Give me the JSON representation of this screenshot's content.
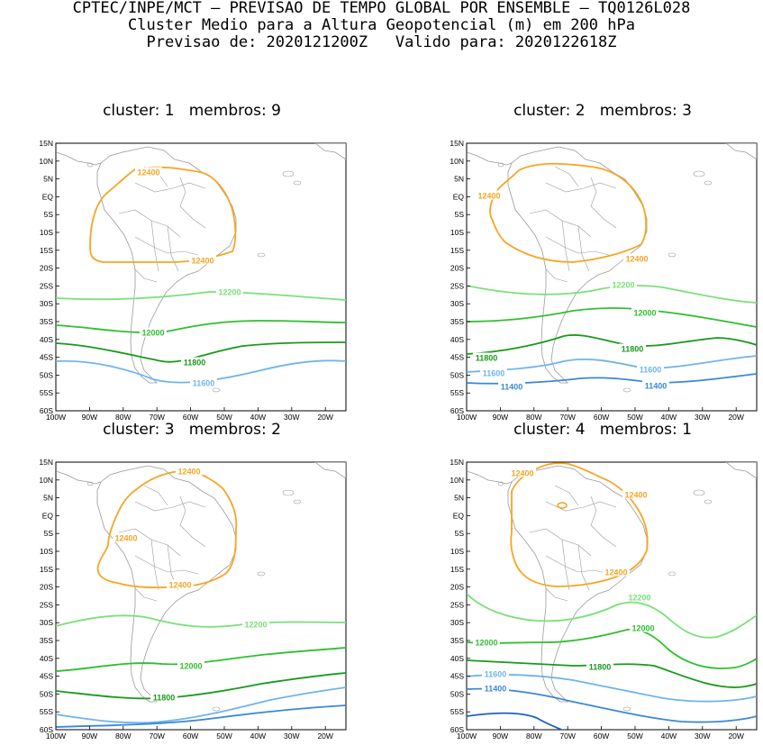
{
  "header": {
    "line1": "CPTEC/INPE/MCT — PREVISAO DE TEMPO GLOBAL POR ENSEMBLE — TQ0126L028",
    "line2": "Cluster Medio para a Altura Geopotencial (m) em 200 hPa",
    "line3": "Previsao de: 2020121200Z   Valido para: 2020122618Z"
  },
  "colors": {
    "c12400": "#f5a623",
    "c12200": "#7ae07a",
    "c12000": "#2fbf2f",
    "c11800": "#1a9a1a",
    "c11600": "#6fb4ec",
    "c11400": "#3a88d8",
    "c11200": "#1f5fbf",
    "coast": "#9a9a9a"
  },
  "axes": {
    "lat_labels": [
      "15N",
      "10N",
      "5N",
      "EQ",
      "5S",
      "10S",
      "15S",
      "20S",
      "25S",
      "30S",
      "35S",
      "40S",
      "45S",
      "50S",
      "55S",
      "60S"
    ],
    "lon_labels": [
      "100W",
      "90W",
      "80W",
      "70W",
      "60W",
      "50W",
      "40W",
      "30W",
      "20W"
    ]
  },
  "panels": [
    {
      "title": "cluster: 1   membros: 9",
      "contours": [
        {
          "level": "12400",
          "color": "c12400",
          "labels": [
            "12400",
            "12400"
          ]
        },
        {
          "level": "12200",
          "color": "c12200",
          "labels": [
            "12200"
          ]
        },
        {
          "level": "12000",
          "color": "c12000",
          "labels": [
            "12000"
          ]
        },
        {
          "level": "11800",
          "color": "c11800",
          "labels": [
            "11800"
          ]
        },
        {
          "level": "11600",
          "color": "c11600",
          "labels": [
            "11600"
          ]
        }
      ]
    },
    {
      "title": "cluster: 2   membros: 3",
      "contours": [
        {
          "level": "12400",
          "color": "c12400",
          "labels": [
            "12400",
            "12400"
          ]
        },
        {
          "level": "12200",
          "color": "c12200",
          "labels": [
            "12200"
          ]
        },
        {
          "level": "12000",
          "color": "c12000",
          "labels": [
            "12000"
          ]
        },
        {
          "level": "11800",
          "color": "c11800",
          "labels": [
            "11800",
            "11800"
          ]
        },
        {
          "level": "11600",
          "color": "c11600",
          "labels": [
            "11600",
            "11600"
          ]
        },
        {
          "level": "11400",
          "color": "c11400",
          "labels": [
            "11400",
            "11400"
          ]
        }
      ]
    },
    {
      "title": "cluster: 3   membros: 2",
      "contours": [
        {
          "level": "12400",
          "color": "c12400",
          "labels": [
            "12400",
            "12400",
            "12400"
          ]
        },
        {
          "level": "12200",
          "color": "c12200",
          "labels": [
            "12200"
          ]
        },
        {
          "level": "12000",
          "color": "c12000",
          "labels": [
            "12000"
          ]
        },
        {
          "level": "11800",
          "color": "c11800",
          "labels": [
            "11800"
          ]
        }
      ]
    },
    {
      "title": "cluster: 4   membros: 1",
      "contours": [
        {
          "level": "12400",
          "color": "c12400",
          "labels": [
            "12400",
            "12400",
            "12400"
          ]
        },
        {
          "level": "12200",
          "color": "c12200",
          "labels": [
            "12200"
          ]
        },
        {
          "level": "12000",
          "color": "c12000",
          "labels": [
            "12000",
            "12000"
          ]
        },
        {
          "level": "11800",
          "color": "c11800",
          "labels": [
            "11800"
          ]
        },
        {
          "level": "11600",
          "color": "c11600",
          "labels": [
            "11600"
          ]
        },
        {
          "level": "11400",
          "color": "c11400",
          "labels": [
            "11400"
          ]
        }
      ]
    }
  ]
}
